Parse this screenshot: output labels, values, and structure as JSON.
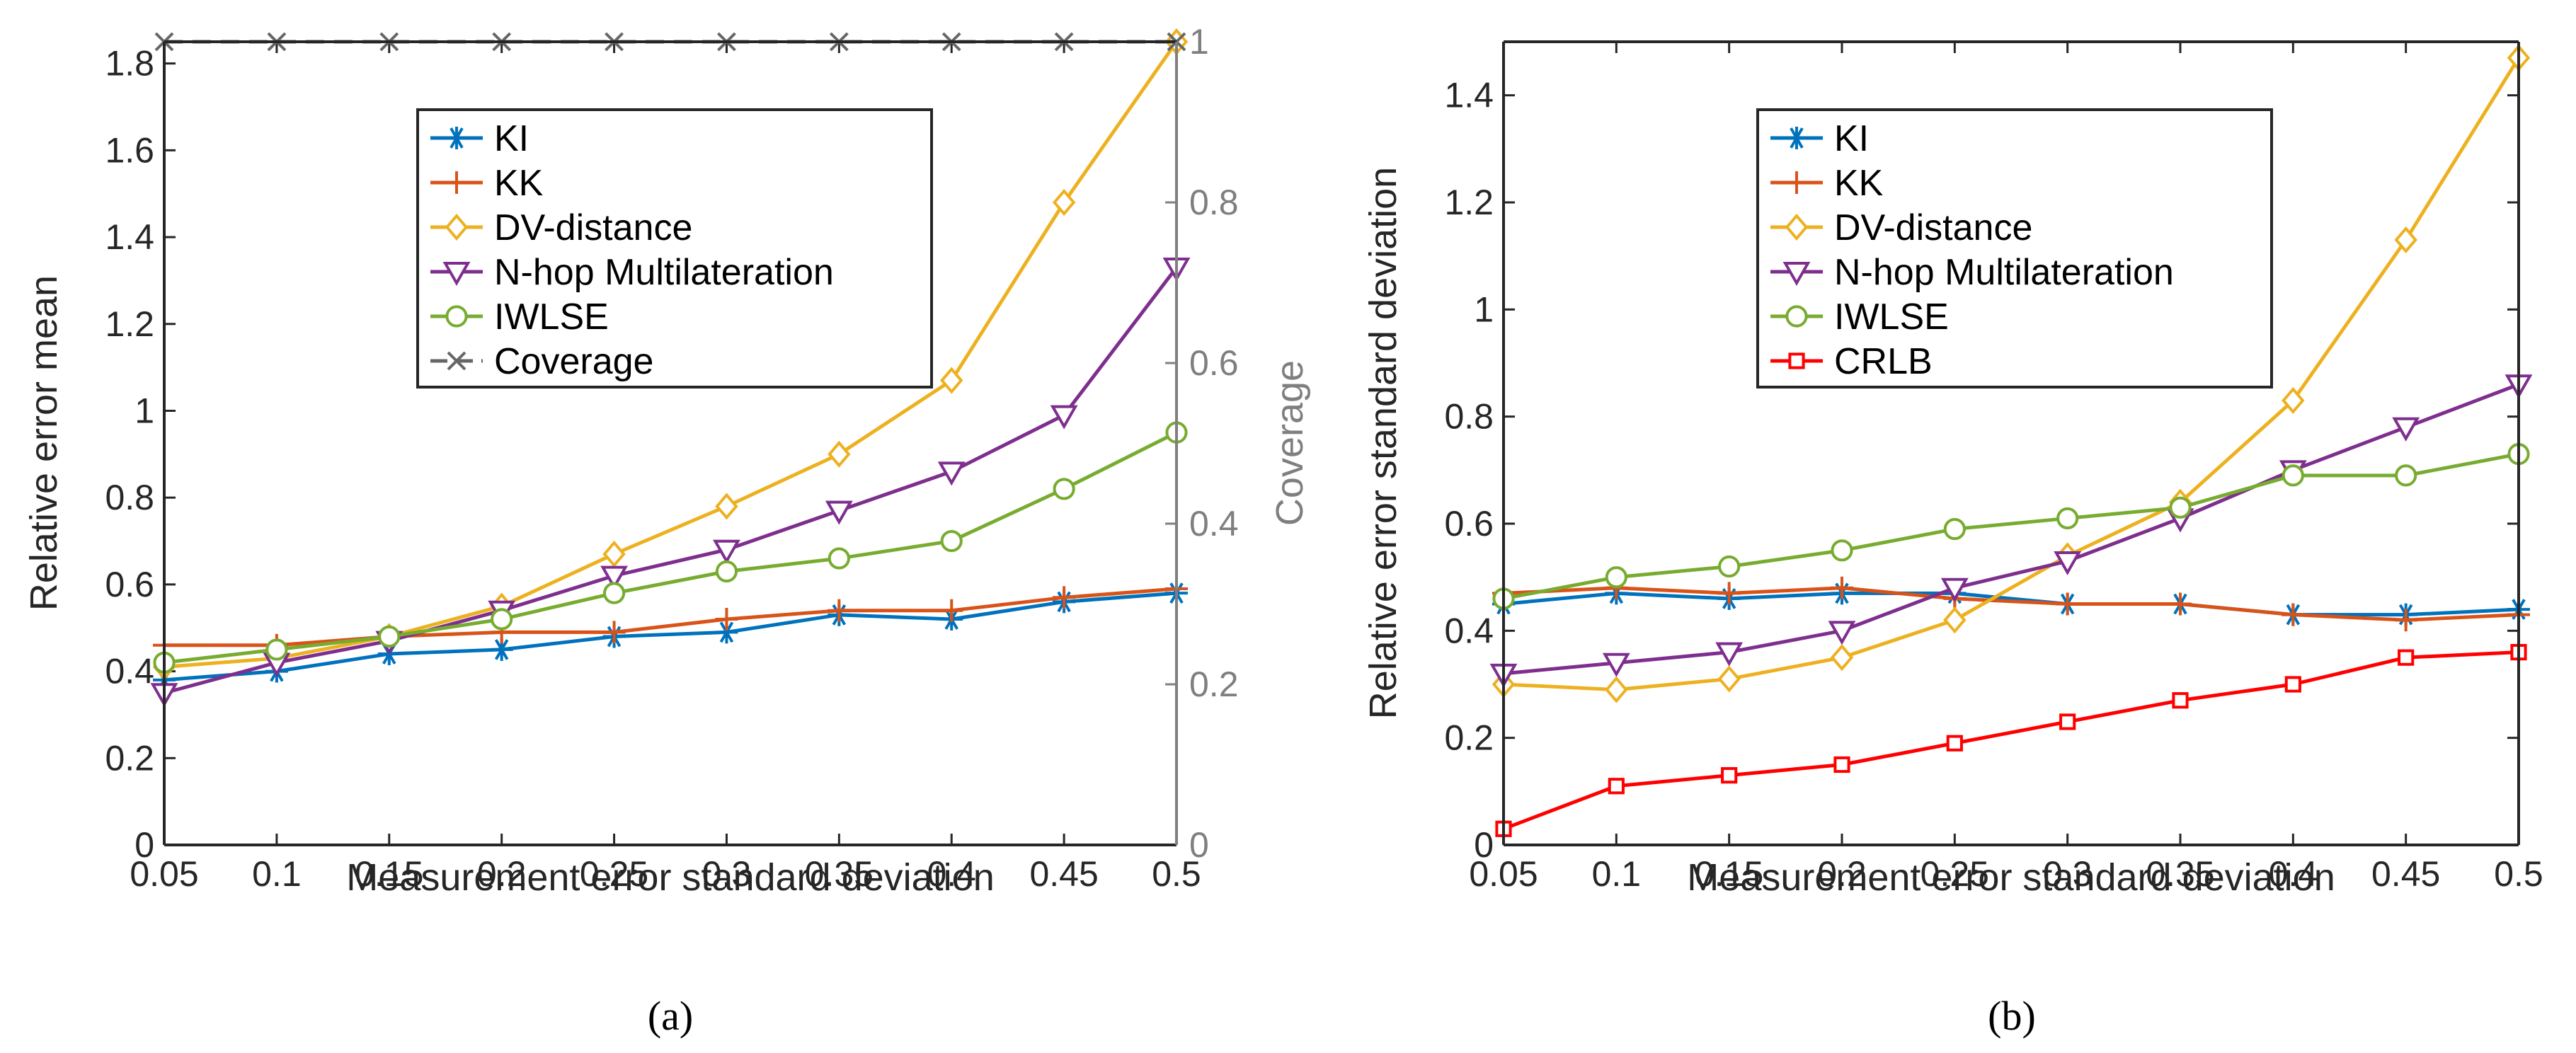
{
  "chart_data": [
    {
      "type": "line",
      "caption": "(a)",
      "xlabel": "Measurement error standard deviation",
      "ylabel": "Relative error mean",
      "y2label": "Coverage",
      "x": [
        0.05,
        0.1,
        0.15,
        0.2,
        0.25,
        0.3,
        0.35,
        0.4,
        0.45,
        0.5
      ],
      "x_ticks": [
        "0.05",
        "0.1",
        "0.15",
        "0.2",
        "0.25",
        "0.3",
        "0.35",
        "0.4",
        "0.45",
        "0.5"
      ],
      "ylim": [
        0,
        1.85
      ],
      "y_ticks": [
        "0",
        "0.2",
        "0.4",
        "0.6",
        "0.8",
        "1",
        "1.2",
        "1.4",
        "1.6",
        "1.8"
      ],
      "y2lim": [
        0,
        1
      ],
      "y2_ticks": [
        "0",
        "0.2",
        "0.4",
        "0.6",
        "0.8",
        "1"
      ],
      "series": [
        {
          "name": "KI",
          "color": "#0072BD",
          "marker": "asterisk",
          "axis": "left",
          "values": [
            0.38,
            0.4,
            0.44,
            0.45,
            0.48,
            0.49,
            0.53,
            0.52,
            0.56,
            0.58
          ]
        },
        {
          "name": "KK",
          "color": "#D95319",
          "marker": "plus",
          "axis": "left",
          "values": [
            0.46,
            0.46,
            0.48,
            0.49,
            0.49,
            0.52,
            0.54,
            0.54,
            0.57,
            0.59
          ]
        },
        {
          "name": "DV-distance",
          "color": "#EDB120",
          "marker": "diamond",
          "axis": "left",
          "values": [
            0.41,
            0.43,
            0.48,
            0.55,
            0.67,
            0.78,
            0.9,
            1.07,
            1.48,
            1.85
          ]
        },
        {
          "name": "N-hop Multilateration",
          "color": "#7E2F8E",
          "marker": "triangle-down",
          "axis": "left",
          "values": [
            0.35,
            0.42,
            0.47,
            0.54,
            0.62,
            0.68,
            0.77,
            0.86,
            0.99,
            1.33
          ]
        },
        {
          "name": "IWLSE",
          "color": "#77AC30",
          "marker": "circle",
          "axis": "left",
          "values": [
            0.42,
            0.45,
            0.48,
            0.52,
            0.58,
            0.63,
            0.66,
            0.7,
            0.82,
            0.95
          ]
        },
        {
          "name": "Coverage",
          "color": "#666666",
          "marker": "x",
          "axis": "right",
          "dashed": true,
          "values": [
            1,
            1,
            1,
            1,
            1,
            1,
            1,
            1,
            1,
            1
          ]
        }
      ]
    },
    {
      "type": "line",
      "caption": "(b)",
      "xlabel": "Measurement error standard deviation",
      "ylabel": "Relative error standard deviation",
      "x": [
        0.05,
        0.1,
        0.15,
        0.2,
        0.25,
        0.3,
        0.35,
        0.4,
        0.45,
        0.5
      ],
      "x_ticks": [
        "0.05",
        "0.1",
        "0.15",
        "0.2",
        "0.25",
        "0.3",
        "0.35",
        "0.4",
        "0.45",
        "0.5"
      ],
      "ylim": [
        0,
        1.5
      ],
      "y_ticks": [
        "0",
        "0.2",
        "0.4",
        "0.6",
        "0.8",
        "1",
        "1.2",
        "1.4"
      ],
      "series": [
        {
          "name": "KI",
          "color": "#0072BD",
          "marker": "asterisk",
          "values": [
            0.45,
            0.47,
            0.46,
            0.47,
            0.47,
            0.45,
            0.45,
            0.43,
            0.43,
            0.44
          ]
        },
        {
          "name": "KK",
          "color": "#D95319",
          "marker": "plus",
          "values": [
            0.47,
            0.48,
            0.47,
            0.48,
            0.46,
            0.45,
            0.45,
            0.43,
            0.42,
            0.43
          ]
        },
        {
          "name": "DV-distance",
          "color": "#EDB120",
          "marker": "diamond",
          "values": [
            0.3,
            0.29,
            0.31,
            0.35,
            0.42,
            0.54,
            0.64,
            0.83,
            1.13,
            1.47
          ]
        },
        {
          "name": "N-hop Multilateration",
          "color": "#7E2F8E",
          "marker": "triangle-down",
          "values": [
            0.32,
            0.34,
            0.36,
            0.4,
            0.48,
            0.53,
            0.61,
            0.7,
            0.78,
            0.86
          ]
        },
        {
          "name": "IWLSE",
          "color": "#77AC30",
          "marker": "circle",
          "values": [
            0.46,
            0.5,
            0.52,
            0.55,
            0.59,
            0.61,
            0.63,
            0.69,
            0.69,
            0.73
          ]
        },
        {
          "name": "CRLB",
          "color": "#FF0000",
          "marker": "square",
          "values": [
            0.03,
            0.11,
            0.13,
            0.15,
            0.19,
            0.23,
            0.27,
            0.3,
            0.35,
            0.36
          ]
        }
      ]
    }
  ]
}
